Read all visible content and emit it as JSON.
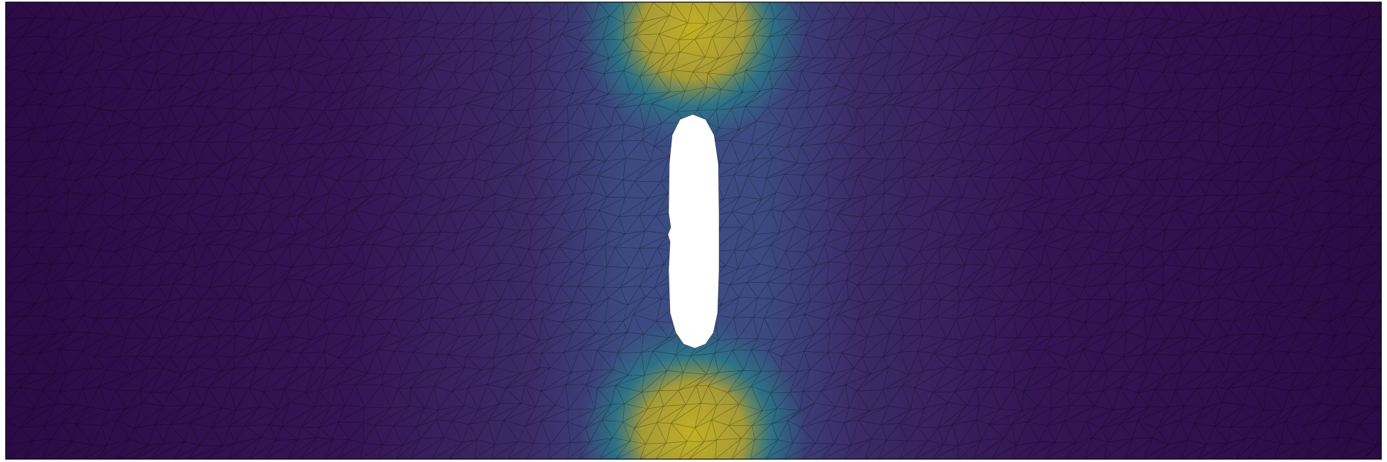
{
  "figure": {
    "field_colormap": [
      "#440154",
      "#3b528b",
      "#21918c",
      "#5ec962",
      "#c9b51f"
    ],
    "background_color": "#ffffff",
    "border_color": "#000000",
    "mesh_line_color": "#000000",
    "hole_color": "#ffffff"
  }
}
